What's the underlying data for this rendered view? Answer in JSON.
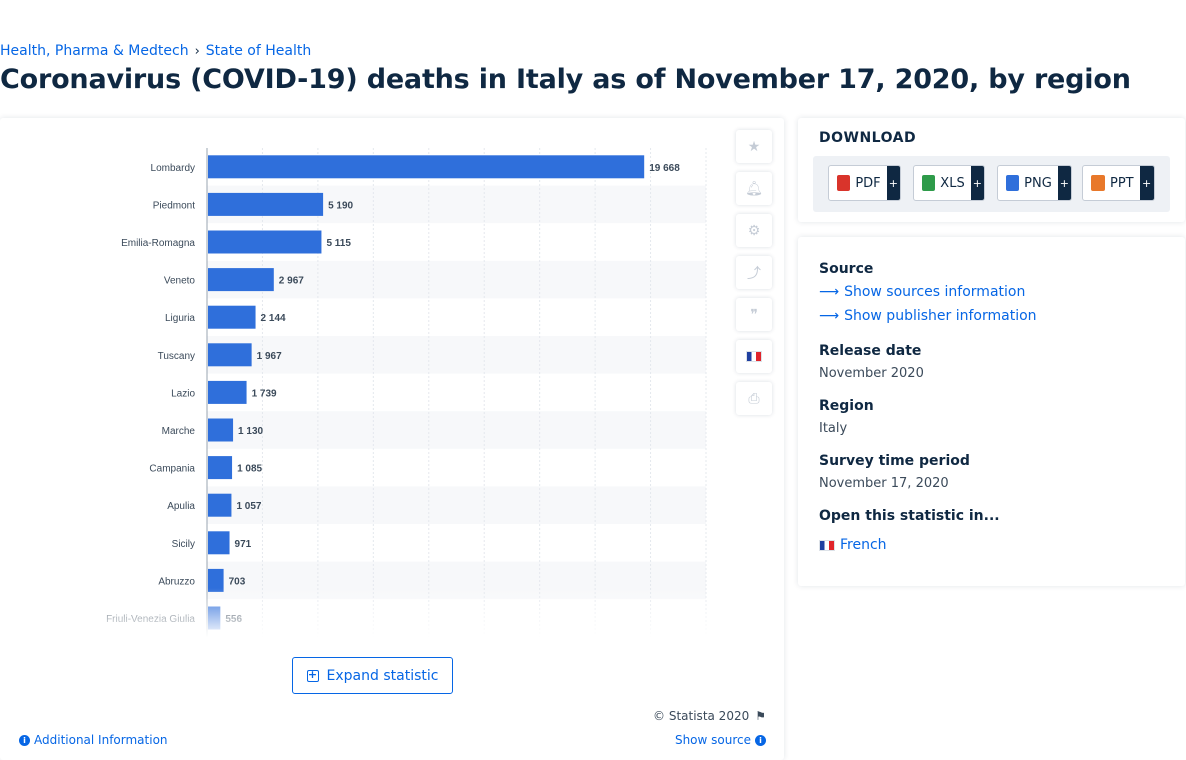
{
  "breadcrumb": {
    "category": "Health, Pharma & Medtech",
    "separator": "›",
    "topic": "State of Health"
  },
  "page_title": "Coronavirus (COVID-19) deaths in Italy as of November 17, 2020, by region",
  "chart_data": {
    "type": "bar",
    "orientation": "horizontal",
    "categories": [
      "Lombardy",
      "Piedmont",
      "Emilia-Romagna",
      "Veneto",
      "Liguria",
      "Tuscany",
      "Lazio",
      "Marche",
      "Campania",
      "Apulia",
      "Sicily",
      "Abruzzo",
      "Friuli-Venezia Giulia"
    ],
    "values": [
      19668,
      5190,
      5115,
      2967,
      2144,
      1967,
      1739,
      1130,
      1085,
      1057,
      971,
      703,
      556
    ],
    "value_labels": [
      "19 668",
      "5 190",
      "5 115",
      "2 967",
      "2 144",
      "1 967",
      "1 739",
      "1 130",
      "1 085",
      "1 057",
      "971",
      "703",
      "556"
    ],
    "xlim": [
      0,
      22500
    ],
    "grid": true,
    "bar_color": "#2f6fdb"
  },
  "tools": [
    "star-icon",
    "bell-icon",
    "gear-icon",
    "share-icon",
    "quote-icon",
    "french-flag-icon",
    "print-icon"
  ],
  "expand_label": "Expand statistic",
  "copyright": "© Statista 2020",
  "additional_info": "Additional Information",
  "show_source": "Show source",
  "download": {
    "title": "DOWNLOAD",
    "formats": [
      {
        "label": "PDF",
        "color": "#d9342b"
      },
      {
        "label": "XLS",
        "color": "#2e9b4a"
      },
      {
        "label": "PNG",
        "color": "#2f6fdb"
      },
      {
        "label": "PPT",
        "color": "#e8782a"
      }
    ],
    "plus": "+"
  },
  "info": {
    "source_head": "Source",
    "show_sources": "Show sources information",
    "show_publisher": "Show publisher information",
    "release_head": "Release date",
    "release_val": "November 2020",
    "region_head": "Region",
    "region_val": "Italy",
    "survey_head": "Survey time period",
    "survey_val": "November 17, 2020",
    "open_head": "Open this statistic in...",
    "french": "French"
  }
}
